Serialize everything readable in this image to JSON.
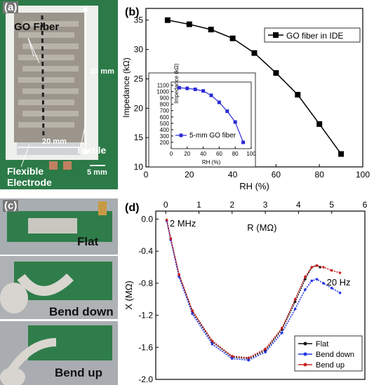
{
  "panel_a": {
    "label": "(a)",
    "go_fiber": "GO Fiber",
    "dim_35": "35 mm",
    "dim_20": "20 mm",
    "textile": "Textile",
    "flexible": "Flexible",
    "electrode": "Electrode",
    "dim_5": "5 mm"
  },
  "panel_c": {
    "label": "(c)",
    "flat": "Flat",
    "bend_down": "Bend down",
    "bend_up": "Bend up"
  },
  "chart_data": [
    {
      "type": "line",
      "panel": "(b)",
      "xlabel": "RH (%)",
      "ylabel": "Impedance (kΩ)",
      "xlim": [
        0,
        100
      ],
      "ylim": [
        10,
        37
      ],
      "xticks": [
        0,
        20,
        40,
        60,
        80,
        100
      ],
      "yticks": [
        10,
        15,
        20,
        25,
        30,
        35
      ],
      "legend_position": "top-right",
      "series": [
        {
          "name": "GO fiber in IDE",
          "color": "#000000",
          "x": [
            10,
            20,
            30,
            40,
            50,
            60,
            70,
            80,
            90
          ],
          "y": [
            35.0,
            34.3,
            33.4,
            31.9,
            29.4,
            26.0,
            22.3,
            17.3,
            12.2
          ]
        }
      ],
      "inset": {
        "type": "line",
        "xlabel": "RH (%)",
        "ylabel": "Impedance (kΩ)",
        "xlim": [
          0,
          100
        ],
        "ylim": [
          100,
          1150
        ],
        "xticks": [
          0,
          20,
          40,
          60,
          80,
          100
        ],
        "yticks": [
          200,
          300,
          400,
          500,
          600,
          700,
          800,
          900,
          1000,
          1100
        ],
        "legend_position": "bottom-left",
        "series": [
          {
            "name": "5-mm GO fiber",
            "color": "#2a2ad8",
            "x": [
              10,
              20,
              30,
              40,
              50,
              60,
              70,
              80,
              90
            ],
            "y": [
              1060,
              1050,
              1035,
              1010,
              940,
              830,
              690,
              520,
              200
            ]
          }
        ]
      }
    },
    {
      "type": "scatter",
      "panel": "(d)",
      "xlabel": "R (MΩ)",
      "ylabel": "X (MΩ)",
      "xlim": [
        -0.3,
        6
      ],
      "ylim": [
        -2.0,
        0.1
      ],
      "xticks": [
        0,
        1,
        2,
        3,
        4,
        5,
        6
      ],
      "yticks": [
        0.0,
        -0.4,
        -0.8,
        -1.2,
        -1.6,
        -2.0
      ],
      "annotations": [
        "2 MHz",
        "20 Hz"
      ],
      "legend_position": "bottom-right",
      "series": [
        {
          "name": "Flat",
          "color": "#111111",
          "x": [
            0.03,
            0.15,
            0.4,
            0.8,
            1.4,
            2.0,
            2.5,
            3.0,
            3.5,
            3.9,
            4.2,
            4.4,
            4.55,
            4.65
          ],
          "y": [
            -0.02,
            -0.25,
            -0.7,
            -1.15,
            -1.53,
            -1.72,
            -1.74,
            -1.64,
            -1.38,
            -1.03,
            -0.75,
            -0.6,
            -0.58,
            -0.6
          ]
        },
        {
          "name": "Bend down",
          "color": "#2233e8",
          "x": [
            0.03,
            0.15,
            0.4,
            0.8,
            1.4,
            2.0,
            2.5,
            3.0,
            3.5,
            3.9,
            4.2,
            4.4,
            4.55,
            4.75,
            5.0,
            5.25
          ],
          "y": [
            -0.02,
            -0.26,
            -0.72,
            -1.18,
            -1.56,
            -1.74,
            -1.76,
            -1.66,
            -1.42,
            -1.12,
            -0.88,
            -0.77,
            -0.75,
            -0.8,
            -0.86,
            -0.92
          ]
        },
        {
          "name": "Bend up",
          "color": "#cc2222",
          "x": [
            0.03,
            0.15,
            0.4,
            0.8,
            1.4,
            2.0,
            2.5,
            3.0,
            3.5,
            3.9,
            4.2,
            4.4,
            4.55,
            4.75,
            5.0,
            5.25
          ],
          "y": [
            -0.01,
            -0.24,
            -0.69,
            -1.14,
            -1.52,
            -1.71,
            -1.73,
            -1.62,
            -1.36,
            -1.0,
            -0.72,
            -0.6,
            -0.58,
            -0.6,
            -0.64,
            -0.67
          ]
        }
      ]
    }
  ]
}
